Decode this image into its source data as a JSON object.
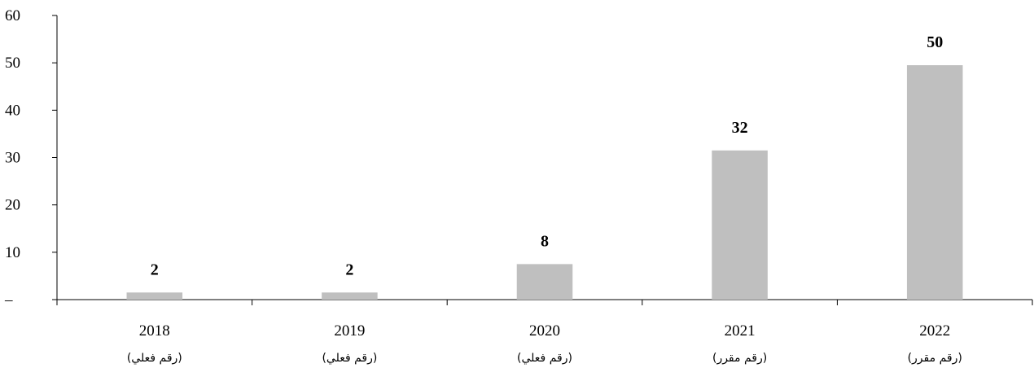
{
  "chart_data": {
    "type": "bar",
    "categories": [
      "2018",
      "2019",
      "2020",
      "2021",
      "2022"
    ],
    "sublabels": [
      "(رقم فعلي)",
      "(رقم فعلي)",
      "(رقم فعلي)",
      "(رقم مقرر)",
      "(رقم مقرر)"
    ],
    "values": [
      1.5,
      1.5,
      7.5,
      31.5,
      49.5
    ],
    "data_labels": [
      "2",
      "2",
      "8",
      "32",
      "50"
    ],
    "y_ticks": [
      "–",
      "10",
      "20",
      "30",
      "40",
      "50",
      "60"
    ],
    "y_tick_values": [
      0,
      10,
      20,
      30,
      40,
      50,
      60
    ],
    "ylim": [
      0,
      60
    ],
    "grid": false,
    "bar_color": "#bfbfbf",
    "title": "",
    "xlabel": "",
    "ylabel": ""
  }
}
